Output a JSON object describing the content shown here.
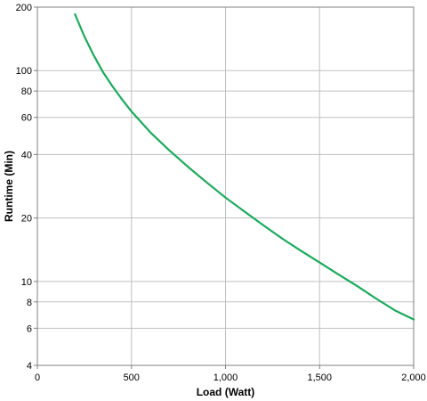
{
  "chart_data": {
    "type": "line",
    "title": "",
    "xlabel": "Load (Watt)",
    "ylabel": "Runtime (Min)",
    "x_scale": "linear",
    "y_scale": "log",
    "xlim": [
      0,
      2000
    ],
    "ylim": [
      4,
      200
    ],
    "x_ticks": [
      {
        "value": 0,
        "label": "0"
      },
      {
        "value": 500,
        "label": "500"
      },
      {
        "value": 1000,
        "label": "1,000"
      },
      {
        "value": 1500,
        "label": "1,500"
      },
      {
        "value": 2000,
        "label": "2,000"
      }
    ],
    "y_ticks": [
      {
        "value": 4,
        "label": "4"
      },
      {
        "value": 6,
        "label": "6"
      },
      {
        "value": 8,
        "label": "8"
      },
      {
        "value": 10,
        "label": "10"
      },
      {
        "value": 20,
        "label": "20"
      },
      {
        "value": 40,
        "label": "40"
      },
      {
        "value": 60,
        "label": "60"
      },
      {
        "value": 80,
        "label": "80"
      },
      {
        "value": 100,
        "label": "100"
      },
      {
        "value": 200,
        "label": "200"
      }
    ],
    "grid": true,
    "legend": "none",
    "colors": {
      "line": "#1aab5a",
      "grid": "#c0c0c0",
      "axis": "#808080"
    },
    "series": [
      {
        "x": [
          200,
          250,
          300,
          350,
          400,
          450,
          500,
          600,
          700,
          800,
          900,
          1000,
          1100,
          1200,
          1300,
          1400,
          1500,
          1600,
          1700,
          1800,
          1900,
          2000
        ],
        "y": [
          185,
          145,
          118,
          98,
          84,
          73,
          64,
          51,
          42,
          35,
          29.5,
          25,
          21.5,
          18.5,
          16.0,
          14.0,
          12.3,
          10.8,
          9.5,
          8.3,
          7.3,
          6.6
        ]
      }
    ]
  }
}
